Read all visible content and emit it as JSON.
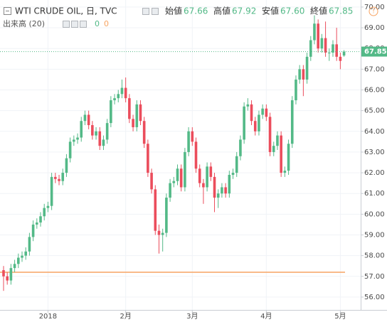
{
  "header": {
    "symbol": "WTI CRUDE OIL, 日, TVC",
    "ohlc": [
      {
        "name": "始値",
        "value": "67.66"
      },
      {
        "name": "高値",
        "value": "67.92"
      },
      {
        "name": "安値",
        "value": "67.60"
      },
      {
        "name": "終値",
        "value": "67.85"
      }
    ],
    "volume_label": "出来高 (20)",
    "volume_values": [
      "0",
      "0"
    ]
  },
  "chart_data": {
    "type": "candlestick",
    "up_color": "#53b987",
    "down_color": "#eb4d5c",
    "grid": true,
    "xlim": [
      -0.96,
      96.5
    ],
    "ylim": [
      55.38,
      70.34
    ],
    "xticks": [
      {
        "value": 12,
        "label": "2018"
      },
      {
        "value": 33,
        "label": "2月"
      },
      {
        "value": 51,
        "label": "3月"
      },
      {
        "value": 71,
        "label": "4月"
      },
      {
        "value": 91,
        "label": "5月"
      }
    ],
    "yticks": [
      {
        "value": 56,
        "label": "56.00"
      },
      {
        "value": 57,
        "label": "57.00"
      },
      {
        "value": 58,
        "label": "58.00"
      },
      {
        "value": 59,
        "label": "59.00"
      },
      {
        "value": 60,
        "label": "60.00"
      },
      {
        "value": 61,
        "label": "61.00"
      },
      {
        "value": 62,
        "label": "62.00"
      },
      {
        "value": 63,
        "label": "63.00"
      },
      {
        "value": 64,
        "label": "64.00"
      },
      {
        "value": 65,
        "label": "65.00"
      },
      {
        "value": 66,
        "label": "66.00"
      },
      {
        "value": 67,
        "label": "67.00"
      },
      {
        "value": 68,
        "label": "68.00"
      },
      {
        "value": 69,
        "label": "69.00"
      },
      {
        "value": 70,
        "label": "70.00"
      }
    ],
    "hline": {
      "value": 57.2,
      "color": "#f7a462"
    },
    "open": [
      57.3,
      57.0,
      56.8,
      57.4,
      57.6,
      57.9,
      58.0,
      58.2,
      58.9,
      59.5,
      59.6,
      59.9,
      60.3,
      60.4,
      61.8,
      61.7,
      61.6,
      62.0,
      62.7,
      63.5,
      63.6,
      63.7,
      64.5,
      64.8,
      64.3,
      63.8,
      64.0,
      63.3,
      63.6,
      64.4,
      65.5,
      65.6,
      65.8,
      66.1,
      65.6,
      64.6,
      64.2,
      65.3,
      64.5,
      63.4,
      62.0,
      61.2,
      59.2,
      59.0,
      59.1,
      60.8,
      61.5,
      61.6,
      62.2,
      61.3,
      63.0,
      64.0,
      63.5,
      62.2,
      61.5,
      61.3,
      62.3,
      61.8,
      60.8,
      61.0,
      61.3,
      61.0,
      61.9,
      62.0,
      62.8,
      63.6,
      65.2,
      65.3,
      64.5,
      64.0,
      64.8,
      65.1,
      64.7,
      63.0,
      63.3,
      63.8,
      62.0,
      62.1,
      63.4,
      65.5,
      66.5,
      67.0,
      66.5,
      67.6,
      68.4,
      69.2,
      68.0,
      68.5,
      67.8,
      67.8,
      68.2,
      67.6,
      67.66
    ],
    "high": [
      57.5,
      57.2,
      57.6,
      57.8,
      58.1,
      58.2,
      58.4,
      59.1,
      59.7,
      59.8,
      60.1,
      60.5,
      60.6,
      62.0,
      62.0,
      61.9,
      62.2,
      62.9,
      63.7,
      63.8,
      63.9,
      64.7,
      65.0,
      65.0,
      64.5,
      64.2,
      64.2,
      63.8,
      64.6,
      65.7,
      65.8,
      66.0,
      66.5,
      66.6,
      65.8,
      64.8,
      65.5,
      65.5,
      64.7,
      63.6,
      62.2,
      61.4,
      59.5,
      59.3,
      61.0,
      61.7,
      61.8,
      62.4,
      62.4,
      63.2,
      64.2,
      64.2,
      63.7,
      62.4,
      61.7,
      62.5,
      62.5,
      62.0,
      61.2,
      61.5,
      61.5,
      62.1,
      62.2,
      63.0,
      63.8,
      65.4,
      65.6,
      65.5,
      64.7,
      65.0,
      65.3,
      65.3,
      64.9,
      63.5,
      64.0,
      64.0,
      62.3,
      63.6,
      65.7,
      66.7,
      67.2,
      67.2,
      67.8,
      68.6,
      69.6,
      69.4,
      68.7,
      69.3,
      68.0,
      68.4,
      69.0,
      67.8,
      67.92
    ],
    "low": [
      56.3,
      56.6,
      56.6,
      57.2,
      57.4,
      57.7,
      57.8,
      58.0,
      58.7,
      59.3,
      59.4,
      59.7,
      60.1,
      60.2,
      61.5,
      61.4,
      61.4,
      61.8,
      62.5,
      63.3,
      63.4,
      63.5,
      64.3,
      64.1,
      63.6,
      63.6,
      63.1,
      63.1,
      63.4,
      64.2,
      65.3,
      65.4,
      65.6,
      65.4,
      64.4,
      64.0,
      64.0,
      64.3,
      63.2,
      61.8,
      61.0,
      59.0,
      58.1,
      58.2,
      58.9,
      60.6,
      61.3,
      61.4,
      61.1,
      61.1,
      62.8,
      63.3,
      62.0,
      61.3,
      60.5,
      61.1,
      61.6,
      60.1,
      60.3,
      60.8,
      60.8,
      60.8,
      61.7,
      61.8,
      62.6,
      63.4,
      65.0,
      64.3,
      63.8,
      63.8,
      64.6,
      64.5,
      62.8,
      62.8,
      63.1,
      61.8,
      61.8,
      61.9,
      63.2,
      65.3,
      66.3,
      65.7,
      66.3,
      67.4,
      68.2,
      67.8,
      67.8,
      67.6,
      67.4,
      67.6,
      67.4,
      67.0,
      67.6
    ],
    "close": [
      57.0,
      56.8,
      57.4,
      57.6,
      57.9,
      58.0,
      58.2,
      58.9,
      59.5,
      59.6,
      59.9,
      60.3,
      60.4,
      61.8,
      61.7,
      61.6,
      62.0,
      62.7,
      63.5,
      63.6,
      63.7,
      64.5,
      64.8,
      64.3,
      63.8,
      64.0,
      63.3,
      63.6,
      64.4,
      65.5,
      65.6,
      65.8,
      66.1,
      65.6,
      64.6,
      64.2,
      65.3,
      64.5,
      63.4,
      62.0,
      61.2,
      59.2,
      59.0,
      59.1,
      60.8,
      61.5,
      61.6,
      62.2,
      61.3,
      63.0,
      64.0,
      63.5,
      62.2,
      61.5,
      61.3,
      62.3,
      61.8,
      60.8,
      61.0,
      61.3,
      61.0,
      61.9,
      62.0,
      62.8,
      63.6,
      65.2,
      65.3,
      64.5,
      64.0,
      64.8,
      65.1,
      64.7,
      63.0,
      63.3,
      63.8,
      62.0,
      62.1,
      63.4,
      65.5,
      66.5,
      67.0,
      66.5,
      67.6,
      68.4,
      69.2,
      68.0,
      68.5,
      67.8,
      67.8,
      68.2,
      67.6,
      67.4,
      67.85
    ]
  }
}
